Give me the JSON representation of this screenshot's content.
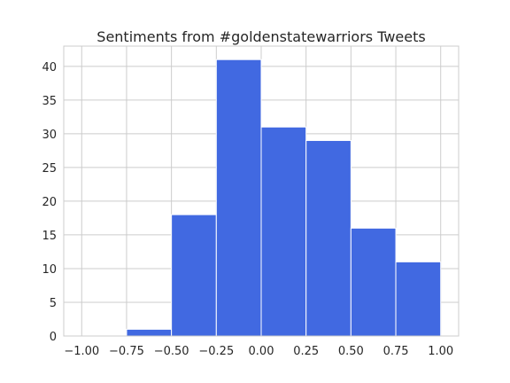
{
  "chart_data": {
    "type": "bar",
    "title": "Sentiments from #goldenstatewarriors Tweets",
    "xlabel": "",
    "ylabel": "",
    "bin_edges": [
      -1.0,
      -0.75,
      -0.5,
      -0.25,
      0.0,
      0.25,
      0.5,
      0.75,
      1.0
    ],
    "values": [
      0,
      1,
      18,
      41,
      31,
      29,
      16,
      11
    ],
    "xlim": [
      -1.1,
      1.1
    ],
    "ylim": [
      0,
      43
    ],
    "xticks": [
      -1.0,
      -0.75,
      -0.5,
      -0.25,
      0.0,
      0.25,
      0.5,
      0.75,
      1.0
    ],
    "xtick_labels": [
      "−1.00",
      "−0.75",
      "−0.50",
      "−0.25",
      "0.00",
      "0.25",
      "0.50",
      "0.75",
      "1.00"
    ],
    "yticks": [
      0,
      5,
      10,
      15,
      20,
      25,
      30,
      35,
      40
    ],
    "ytick_labels": [
      "0",
      "5",
      "10",
      "15",
      "20",
      "25",
      "30",
      "35",
      "40"
    ],
    "bar_color": "#4169e1",
    "grid": true,
    "grid_color": "#cccccc",
    "legend": "none"
  }
}
